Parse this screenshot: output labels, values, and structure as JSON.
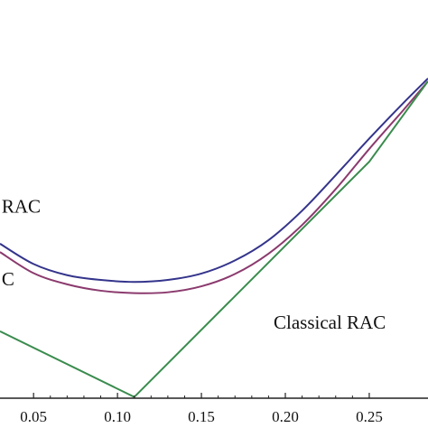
{
  "chart_data": {
    "type": "line",
    "title": "",
    "xlabel": "",
    "ylabel": "",
    "xlim": [
      0.03,
      0.285
    ],
    "ylim": [
      0.0,
      1.0
    ],
    "x_ticks": [
      0.05,
      0.1,
      0.15,
      0.2,
      0.25
    ],
    "x_tick_labels": [
      "0.05",
      "0.10",
      "0.15",
      "0.20",
      "0.25"
    ],
    "grid": false,
    "legend": "none",
    "annotations": [
      {
        "text": "RAC",
        "x": 0.031,
        "y": 0.466
      },
      {
        "text": "C",
        "x": 0.031,
        "y": 0.284
      },
      {
        "text": "Classical RAC",
        "x": 0.193,
        "y": 0.175
      }
    ],
    "series": [
      {
        "color": "#34348c",
        "x": [
          0.03,
          0.05,
          0.07,
          0.09,
          0.11,
          0.13,
          0.15,
          0.17,
          0.19,
          0.21,
          0.23,
          0.25,
          0.27,
          0.285
        ],
        "y": [
          0.388,
          0.337,
          0.309,
          0.297,
          0.292,
          0.297,
          0.313,
          0.346,
          0.397,
          0.471,
          0.56,
          0.652,
          0.74,
          0.803
        ]
      },
      {
        "color": "#8b3a6e",
        "x": [
          0.03,
          0.05,
          0.07,
          0.09,
          0.11,
          0.13,
          0.15,
          0.17,
          0.19,
          0.21,
          0.23,
          0.25,
          0.27,
          0.285
        ],
        "y": [
          0.367,
          0.314,
          0.286,
          0.27,
          0.264,
          0.266,
          0.281,
          0.312,
          0.363,
          0.435,
          0.525,
          0.626,
          0.722,
          0.796
        ]
      },
      {
        "color": "#3a8c4e",
        "x": [
          0.03,
          0.11,
          0.25,
          0.285
        ],
        "y": [
          0.168,
          0.003,
          0.594,
          0.796
        ]
      }
    ]
  }
}
